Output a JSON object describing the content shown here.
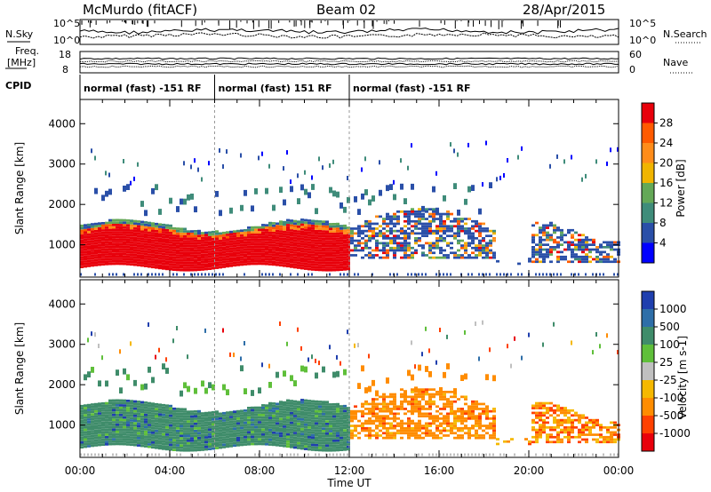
{
  "header": {
    "station": "McMurdo (fitACF)",
    "beam": "Beam 02",
    "date": "28/Apr/2015"
  },
  "status_panels": {
    "nsky_label": "N.Sky",
    "nsky_ticks": [
      "10^5",
      "10^0"
    ],
    "nsearch_label": "N.Search",
    "nsearch_ticks": [
      "10^5",
      "10^0"
    ],
    "freq_label": [
      "Freq.",
      "[MHz]"
    ],
    "freq_ticks": [
      "18",
      "8"
    ],
    "nave_label": "Nave",
    "nave_ticks": [
      "60",
      "0"
    ],
    "cpid_label": "CPID",
    "cpid_segments": [
      {
        "label": "normal (fast) -151 RF",
        "start": 0,
        "end": 6
      },
      {
        "label": "normal (fast) 151 RF",
        "start": 6,
        "end": 12
      },
      {
        "label": "normal (fast) -151 RF",
        "start": 12,
        "end": 24
      }
    ]
  },
  "chart_data": [
    {
      "type": "heatmap",
      "name": "power",
      "ylabel": "Slant Range [km]",
      "yticks": [
        1000,
        2000,
        3000,
        4000
      ],
      "ylim": [
        200,
        4600
      ],
      "xlim": [
        0,
        24
      ],
      "colorbar": {
        "label": "Power [dB]",
        "ticks": [
          "28",
          "24",
          "20",
          "16",
          "12",
          "8",
          "4"
        ],
        "colors": [
          "#e8000b",
          "#ff5a00",
          "#ff8c1a",
          "#f0b400",
          "#64a857",
          "#3f8c7a",
          "#2a4fa8",
          "#0000ff"
        ]
      },
      "dominant_color": "#ff0000"
    },
    {
      "type": "heatmap",
      "name": "velocity",
      "ylabel": "Slant Range [km]",
      "yticks": [
        1000,
        2000,
        3000,
        4000
      ],
      "ylim": [
        200,
        4600
      ],
      "xlim": [
        0,
        24
      ],
      "colorbar": {
        "label": "Velocity [m s-1]",
        "ticks": [
          "1000",
          "500",
          "100",
          "25",
          "-25",
          "-100",
          "-500",
          "-1000"
        ],
        "colors": [
          "#1f3fae",
          "#2e6ea8",
          "#3f8c6a",
          "#5fbf3a",
          "#c0c0c0",
          "#f5b800",
          "#ff8c00",
          "#ff4000",
          "#e8000b"
        ]
      },
      "dominant_color": "#3f8c6a"
    }
  ],
  "xaxis": {
    "ticks": [
      "00:00",
      "04:00",
      "08:00",
      "12:00",
      "16:00",
      "20:00",
      "00:00"
    ],
    "label": "Time UT"
  }
}
